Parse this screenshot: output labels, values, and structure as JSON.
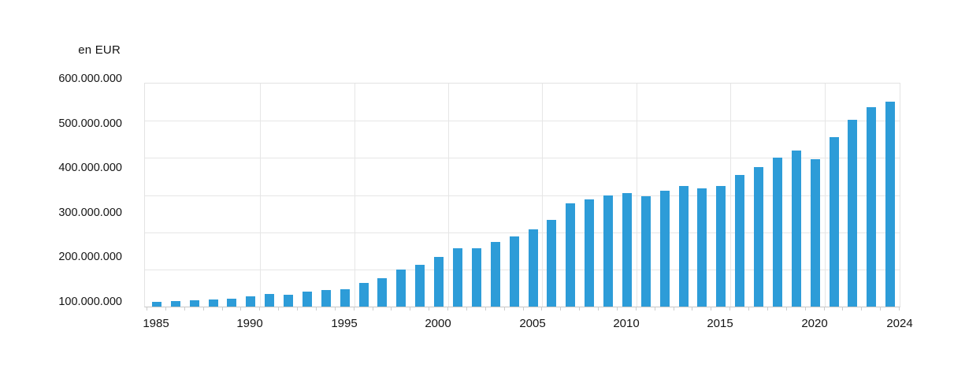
{
  "unit_label": "en EUR",
  "chart_data": {
    "type": "bar",
    "title": "",
    "ylabel": "en EUR",
    "xlabel": "",
    "grid": true,
    "legend": false,
    "bar_color": "#2d9cd8",
    "ylim": [
      100000000,
      600000000
    ],
    "y_tick_labels": [
      "600.000.000",
      "500.000.000",
      "400.000.000",
      "300.000.000",
      "200.000.000",
      "100.000.000"
    ],
    "x_tick_labels": [
      "1985",
      "1990",
      "1995",
      "2000",
      "2005",
      "2010",
      "2015",
      "2020",
      "2024"
    ],
    "categories": [
      1985,
      1986,
      1987,
      1988,
      1989,
      1990,
      1991,
      1992,
      1993,
      1994,
      1995,
      1996,
      1997,
      1998,
      1999,
      2000,
      2001,
      2002,
      2003,
      2004,
      2005,
      2006,
      2007,
      2008,
      2009,
      2010,
      2011,
      2012,
      2013,
      2014,
      2015,
      2016,
      2017,
      2018,
      2019,
      2020,
      2021,
      2022,
      2023,
      2024
    ],
    "values": [
      111000000,
      113000000,
      114000000,
      116000000,
      118000000,
      123000000,
      129000000,
      126000000,
      133000000,
      137000000,
      139000000,
      153000000,
      164000000,
      183000000,
      194000000,
      212000000,
      230000000,
      230000000,
      244000000,
      258000000,
      274000000,
      294000000,
      331000000,
      340000000,
      349000000,
      355000000,
      347000000,
      360000000,
      370000000,
      365000000,
      371000000,
      395000000,
      413000000,
      434000000,
      450000000,
      431000000,
      480000000,
      519000000,
      547000000,
      559000000
    ]
  }
}
